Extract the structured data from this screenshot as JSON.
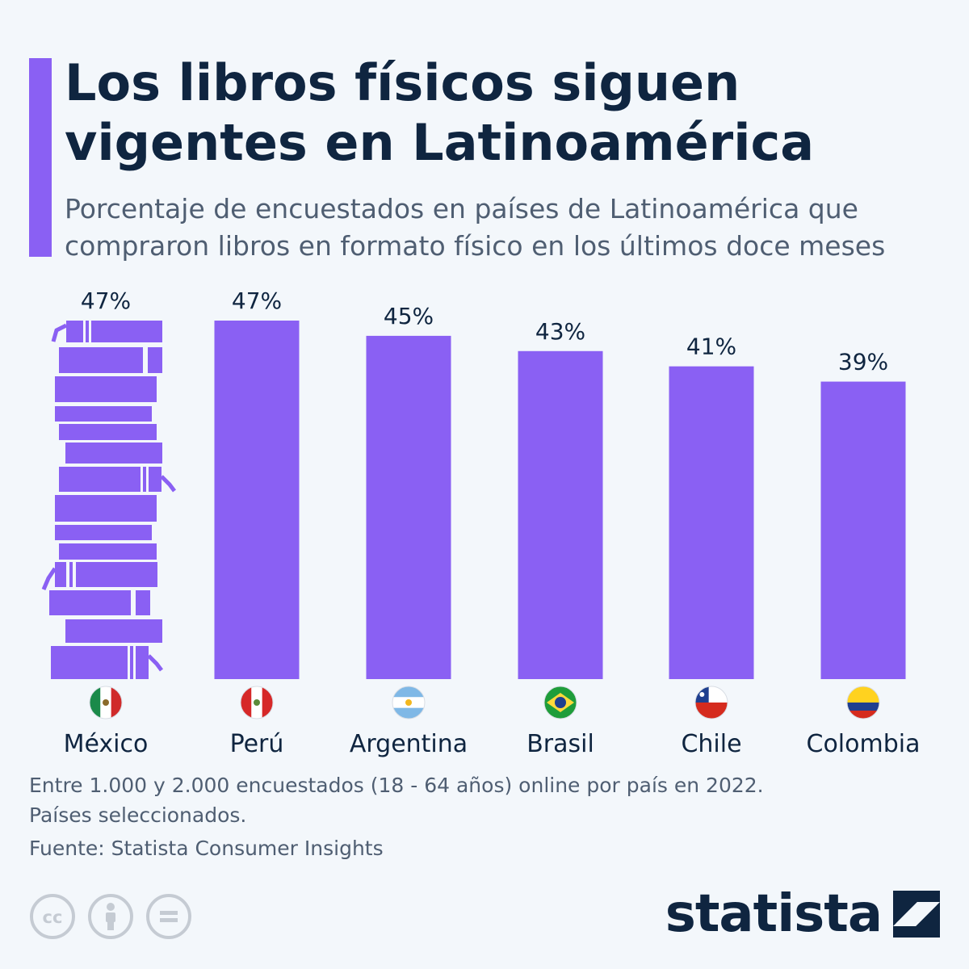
{
  "title": "Los libros físicos siguen vigentes en Latinoamérica",
  "subtitle": "Porcentaje de encuestados en países de Latinoamérica que compraron libros en formato físico en los últimos doce meses",
  "notes": {
    "line1": "Entre 1.000 y 2.000 encuestados (18 - 64 años) online por país en 2022.",
    "line2": "Países seleccionados."
  },
  "source": "Fuente: Statista Consumer Insights",
  "brand": "statista",
  "colors": {
    "accent": "#8a60f3",
    "title": "#0f2540",
    "text": "#4f5e72",
    "background": "#f3f7fb"
  },
  "icons": [
    "cc-icon",
    "attribution-icon",
    "no-derivatives-icon",
    "statista-logo-icon"
  ],
  "chart_data": {
    "type": "bar",
    "title": "",
    "xlabel": "",
    "ylabel": "",
    "ylim": [
      0,
      47
    ],
    "categories": [
      "México",
      "Perú",
      "Argentina",
      "Brasil",
      "Chile",
      "Colombia"
    ],
    "values": [
      47,
      47,
      45,
      43,
      41,
      39
    ],
    "value_labels": [
      "47%",
      "47%",
      "45%",
      "43%",
      "41%",
      "39%"
    ],
    "first_bar_style": "book-stack",
    "flags": [
      "mexico-flag-icon",
      "peru-flag-icon",
      "argentina-flag-icon",
      "brazil-flag-icon",
      "chile-flag-icon",
      "colombia-flag-icon"
    ],
    "grid": false,
    "legend": "none"
  }
}
